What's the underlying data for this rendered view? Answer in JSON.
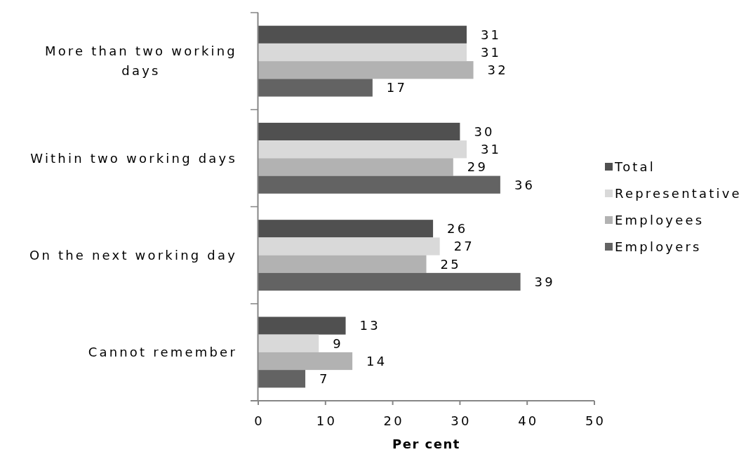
{
  "chart_data": {
    "type": "bar",
    "orientation": "horizontal",
    "categories": [
      "More than two working days",
      "Within two working days",
      "On the next working day",
      "Cannot remember"
    ],
    "series": [
      {
        "name": "Total",
        "color": "#505050",
        "values": [
          31,
          30,
          26,
          13
        ]
      },
      {
        "name": "Representative",
        "color": "#d9d9d9",
        "values": [
          31,
          31,
          27,
          9
        ]
      },
      {
        "name": "Employees",
        "color": "#b2b2b2",
        "values": [
          32,
          29,
          25,
          14
        ]
      },
      {
        "name": "Employers",
        "color": "#636363",
        "values": [
          17,
          36,
          39,
          7
        ]
      }
    ],
    "xlim": [
      0,
      50
    ],
    "xticks": [
      0,
      10,
      20,
      30,
      40,
      50
    ],
    "xlabel": "Per cent",
    "data_labels": true,
    "legend": "right"
  }
}
